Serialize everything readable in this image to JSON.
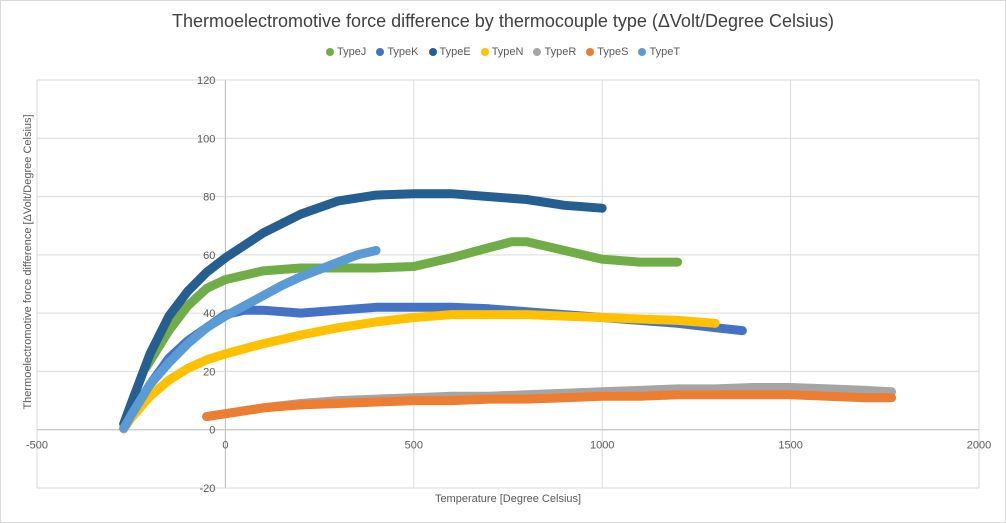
{
  "chart_data": {
    "type": "line",
    "title": "Thermoelectromotive force difference by thermocouple type (ΔVolt/Degree Celsius)",
    "xlabel": "Temperature [Degree Celsius]",
    "ylabel": "Thermoelectromotive force difference [ΔVolt/Degree Celsius]",
    "xlim": [
      -500,
      2000
    ],
    "ylim": [
      -20,
      120
    ],
    "x_ticks": [
      "-500",
      "0",
      "500",
      "1000",
      "1500",
      "2000"
    ],
    "y_ticks": [
      "-20",
      "0",
      "20",
      "40",
      "60",
      "80",
      "100",
      "120"
    ],
    "grid": true,
    "legend_position": "top",
    "series": [
      {
        "name": "TypeJ",
        "color": "#70ad47",
        "x": [
          -210,
          -150,
          -100,
          -50,
          0,
          100,
          200,
          300,
          400,
          500,
          600,
          700,
          760,
          800,
          850,
          900,
          950,
          1000,
          1100,
          1200
        ],
        "y": [
          21.5,
          34,
          42.5,
          48.5,
          51.5,
          54.5,
          55.5,
          55.5,
          55.5,
          56,
          59,
          62.5,
          64.5,
          64.5,
          63,
          61.5,
          60,
          58.5,
          57.5,
          57.5
        ]
      },
      {
        "name": "TypeK",
        "color": "#4472c4",
        "x": [
          -270,
          -250,
          -200,
          -150,
          -100,
          -50,
          0,
          50,
          100,
          200,
          300,
          400,
          500,
          600,
          700,
          800,
          900,
          1000,
          1100,
          1200,
          1300,
          1372
        ],
        "y": [
          0.3,
          5,
          15.5,
          24.5,
          30.5,
          35,
          39.5,
          41,
          41,
          40,
          41,
          42,
          42,
          42,
          41.5,
          40.5,
          39.5,
          38.5,
          37.5,
          36.5,
          35,
          34
        ]
      },
      {
        "name": "TypeE",
        "color": "#255e91",
        "x": [
          -270,
          -250,
          -200,
          -150,
          -100,
          -50,
          0,
          100,
          200,
          300,
          400,
          500,
          600,
          700,
          800,
          900,
          1000
        ],
        "y": [
          2,
          9,
          26,
          39,
          47.5,
          54,
          59,
          67.5,
          74,
          78.5,
          80.5,
          81,
          81,
          80,
          79,
          77,
          76
        ]
      },
      {
        "name": "TypeN",
        "color": "#ffc000",
        "x": [
          -270,
          -250,
          -200,
          -150,
          -100,
          -50,
          0,
          100,
          200,
          300,
          400,
          500,
          600,
          700,
          800,
          900,
          1000,
          1100,
          1200,
          1300
        ],
        "y": [
          0.3,
          4,
          11.5,
          17,
          21,
          24,
          26,
          29.5,
          32.5,
          35,
          37,
          38.5,
          39.5,
          39.5,
          39.5,
          39,
          38.5,
          38,
          37.5,
          36.5
        ]
      },
      {
        "name": "TypeR",
        "color": "#a5a5a5",
        "x": [
          -50,
          0,
          100,
          200,
          300,
          400,
          500,
          600,
          700,
          800,
          900,
          1000,
          1100,
          1200,
          1300,
          1400,
          1500,
          1600,
          1700,
          1768
        ],
        "y": [
          4.5,
          5.5,
          7.5,
          9,
          10,
          10.5,
          11,
          11.5,
          11.5,
          12,
          12.5,
          13,
          13.5,
          14,
          14,
          14.5,
          14.5,
          14,
          13.5,
          13
        ]
      },
      {
        "name": "TypeS",
        "color": "#ed7d31",
        "x": [
          -50,
          0,
          100,
          200,
          300,
          400,
          500,
          600,
          700,
          800,
          900,
          1000,
          1100,
          1200,
          1300,
          1400,
          1500,
          1600,
          1700,
          1768
        ],
        "y": [
          4.5,
          5.5,
          7.5,
          8.5,
          9,
          9.5,
          10,
          10,
          10.5,
          10.5,
          11,
          11.5,
          11.5,
          12,
          12,
          12,
          12,
          11.5,
          11,
          11
        ]
      },
      {
        "name": "TypeT",
        "color": "#5b9bd5",
        "x": [
          -270,
          -250,
          -200,
          -150,
          -100,
          -50,
          0,
          50,
          100,
          150,
          200,
          250,
          300,
          350,
          400
        ],
        "y": [
          0.5,
          5,
          15.5,
          23,
          29.5,
          35,
          39,
          42.5,
          46,
          49.5,
          52.5,
          55,
          57.5,
          60,
          61.5
        ]
      }
    ]
  }
}
